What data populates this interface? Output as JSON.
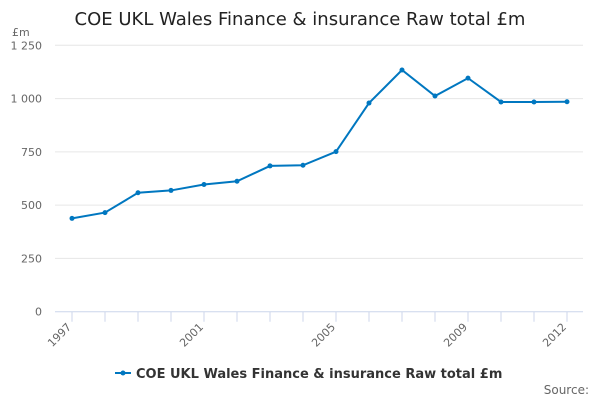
{
  "chart_data": {
    "type": "line",
    "title": "COE UKL Wales Finance & insurance Raw total £m",
    "ylabel": "£m",
    "xlabel": "",
    "x": [
      1997,
      1998,
      1999,
      2000,
      2001,
      2002,
      2003,
      2004,
      2005,
      2006,
      2007,
      2008,
      2009,
      2010,
      2011,
      2012
    ],
    "series": [
      {
        "name": "COE UKL Wales Finance & insurance Raw total £m",
        "values": [
          438,
          465,
          558,
          569,
          597,
          612,
          684,
          687,
          751,
          979,
          1134,
          1012,
          1096,
          984,
          984,
          985
        ],
        "color": "#0077c0"
      }
    ],
    "ylim": [
      0,
      1250
    ],
    "yticks": [
      0,
      250,
      500,
      750,
      1000,
      1250
    ],
    "ytick_labels": [
      "0",
      "250",
      "500",
      "750",
      "1 000",
      "1 250"
    ],
    "xtick_labels": [
      "1997",
      "2001",
      "2005",
      "2009",
      "2012"
    ],
    "grid": true,
    "legend": "bottom-center"
  },
  "footer": {
    "source_label": "Source:"
  }
}
